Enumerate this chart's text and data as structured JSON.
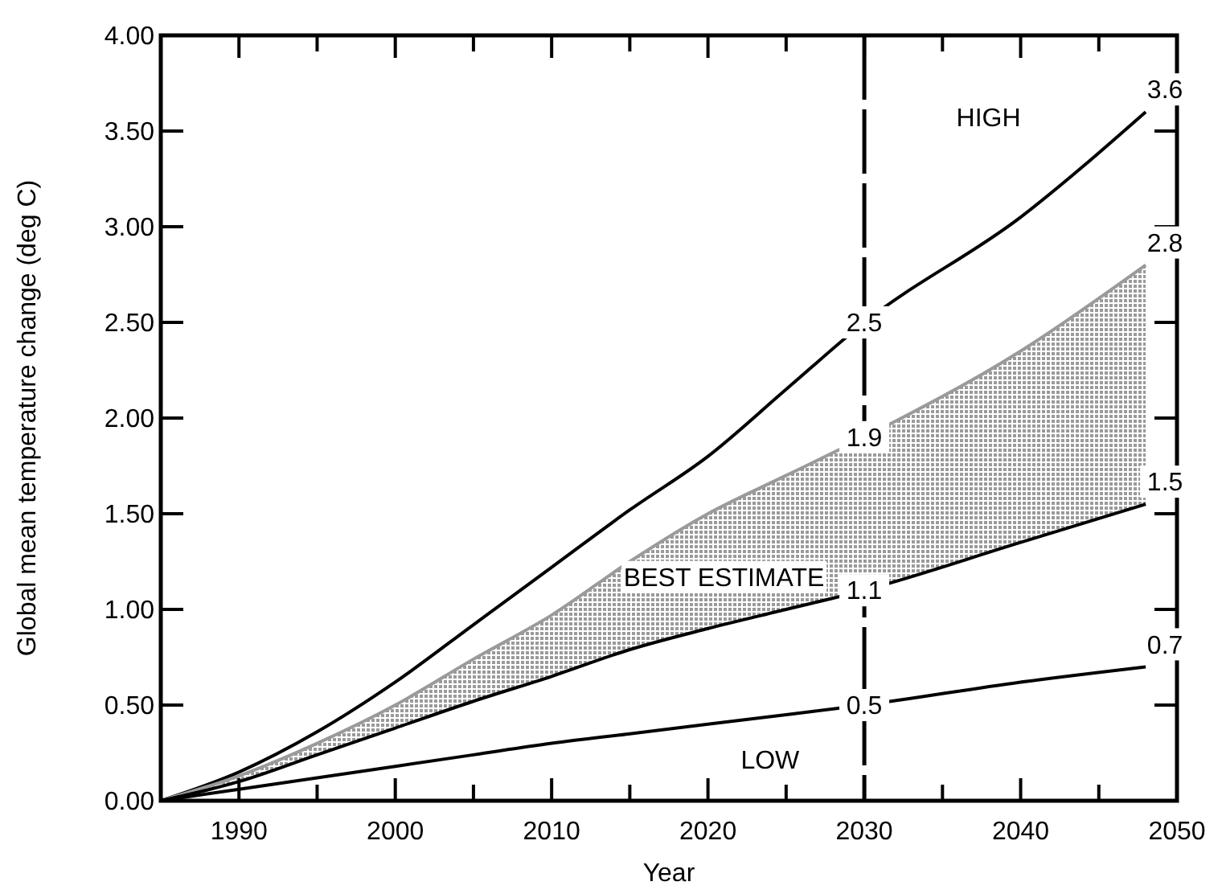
{
  "chart_data": {
    "type": "line",
    "xlabel": "Year",
    "ylabel": "Global mean temperature change (deg C)",
    "x": [
      1985,
      1990,
      1995,
      2000,
      2005,
      2010,
      2015,
      2020,
      2025,
      2030,
      2040,
      2048
    ],
    "xlim": [
      1985,
      2050
    ],
    "ylim": [
      0,
      4
    ],
    "xticks": [
      {
        "value": 1985,
        "label": null
      },
      1990,
      {
        "value": 1995,
        "label": null
      },
      2000,
      {
        "value": 2005,
        "label": null
      },
      2010,
      {
        "value": 2015,
        "label": null
      },
      2020,
      {
        "value": 2025,
        "label": null
      },
      2030,
      {
        "value": 2035,
        "label": null
      },
      2040,
      {
        "value": 2045,
        "label": null
      },
      2050
    ],
    "yticks": [
      {
        "value": 0,
        "label": "0.00"
      },
      {
        "value": 0.5,
        "label": "0.50"
      },
      {
        "value": 1,
        "label": "1.00"
      },
      {
        "value": 1.5,
        "label": "1.50"
      },
      {
        "value": 2,
        "label": "2.00"
      },
      {
        "value": 2.5,
        "label": "2.50"
      },
      {
        "value": 3,
        "label": "3.00"
      },
      {
        "value": 3.5,
        "label": "3.50"
      },
      {
        "value": 4,
        "label": "4.00"
      }
    ],
    "grid": false,
    "marker": "none",
    "line_style": "solid",
    "series": [
      {
        "name": "HIGH",
        "color": "#000000",
        "values": [
          0,
          0.15,
          0.36,
          0.62,
          0.92,
          1.22,
          1.52,
          1.8,
          2.15,
          2.5,
          3.05,
          3.6
        ],
        "value_labels": [
          null,
          null,
          null,
          null,
          null,
          null,
          null,
          null,
          null,
          "2.5",
          null,
          "3.6"
        ]
      },
      {
        "name": "BEST ESTIMATE",
        "type": "area",
        "color": "#9a9a9a",
        "values": [
          0,
          0.13,
          0.3,
          0.5,
          0.74,
          0.97,
          1.25,
          1.5,
          1.7,
          1.9,
          2.35,
          2.8
        ],
        "value_labels": [
          null,
          null,
          null,
          null,
          null,
          null,
          null,
          null,
          null,
          "1.9",
          null,
          "2.8"
        ]
      },
      {
        "color": "#000000",
        "values": [
          0,
          0.1,
          0.24,
          0.38,
          0.52,
          0.65,
          0.79,
          0.9,
          1.0,
          1.1,
          1.35,
          1.55
        ],
        "value_labels": [
          null,
          null,
          null,
          null,
          null,
          null,
          null,
          null,
          null,
          "1.1",
          null,
          "1.5"
        ]
      },
      {
        "name": "LOW",
        "color": "#000000",
        "values": [
          0,
          0.06,
          0.12,
          0.18,
          0.24,
          0.3,
          0.35,
          0.4,
          0.45,
          0.5,
          0.62,
          0.7
        ],
        "value_labels": [
          null,
          null,
          null,
          null,
          null,
          null,
          null,
          null,
          null,
          "0.5",
          null,
          "0.7"
        ]
      }
    ],
    "ref_lines": [
      {
        "axis": "x",
        "value": 2030,
        "color": "#000000",
        "line_style": "dashed"
      }
    ]
  }
}
